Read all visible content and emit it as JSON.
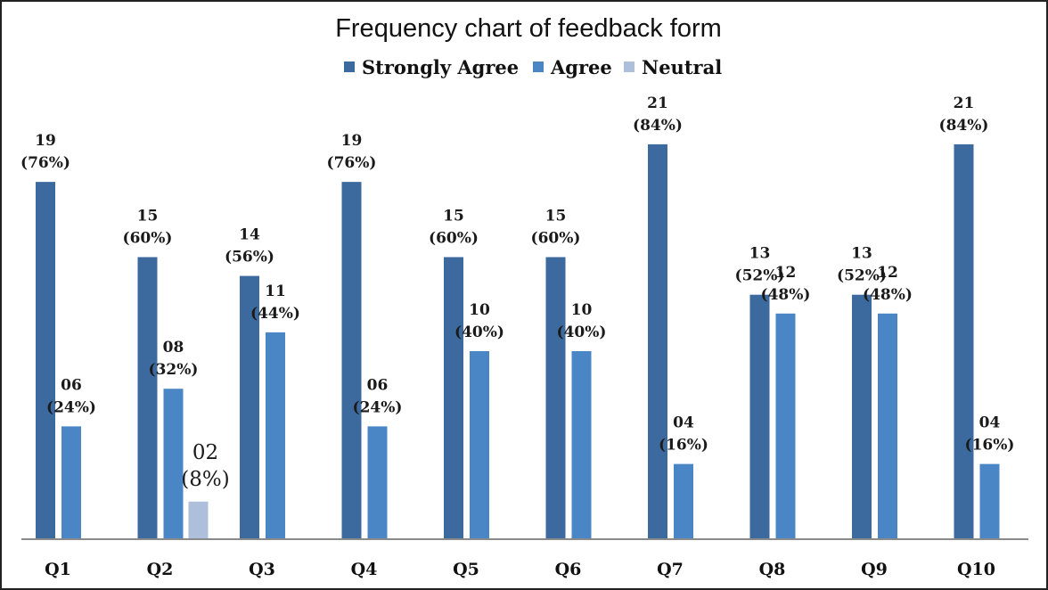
{
  "chart_data": {
    "type": "bar",
    "title": "Frequency chart of feedback form",
    "xlabel": "",
    "ylabel": "",
    "ylim": [
      0,
      25
    ],
    "grid": false,
    "legend_position": "top-center",
    "categories": [
      "Q1",
      "Q2",
      "Q3",
      "Q4",
      "Q5",
      "Q6",
      "Q7",
      "Q8",
      "Q9",
      "Q10"
    ],
    "series": [
      {
        "name": "Strongly Agree",
        "color": "#3d6a9e",
        "values": [
          19,
          15,
          14,
          19,
          15,
          15,
          21,
          13,
          13,
          21
        ],
        "count_labels": [
          "19",
          "15",
          "14",
          "19",
          "15",
          "15",
          "21",
          "13",
          "13",
          "21"
        ],
        "percent_labels": [
          "(76%)",
          "(60%)",
          "(56%)",
          "(76%)",
          "(60%)",
          "(60%)",
          "(84%)",
          "(52%)",
          "(52%)",
          "(84%)"
        ]
      },
      {
        "name": "Agree",
        "color": "#4a85c6",
        "values": [
          6,
          8,
          11,
          6,
          10,
          10,
          4,
          12,
          12,
          4
        ],
        "count_labels": [
          "06",
          "08",
          "11",
          "06",
          "10",
          "10",
          "04",
          "12",
          "12",
          "04"
        ],
        "percent_labels": [
          "(24%)",
          "(32%)",
          "(44%)",
          "(24%)",
          "(40%)",
          "(40%)",
          "(16%)",
          "(48%)",
          "(48%)",
          "(16%)"
        ]
      },
      {
        "name": "Neutral",
        "color": "#aebfdc",
        "values": [
          null,
          2,
          null,
          null,
          null,
          null,
          null,
          null,
          null,
          null
        ],
        "count_labels": [
          "",
          "02",
          "",
          "",
          "",
          "",
          "",
          "",
          "",
          ""
        ],
        "percent_labels": [
          "",
          "(8%)",
          "",
          "",
          "",
          "",
          "",
          "",
          "",
          ""
        ]
      }
    ]
  }
}
